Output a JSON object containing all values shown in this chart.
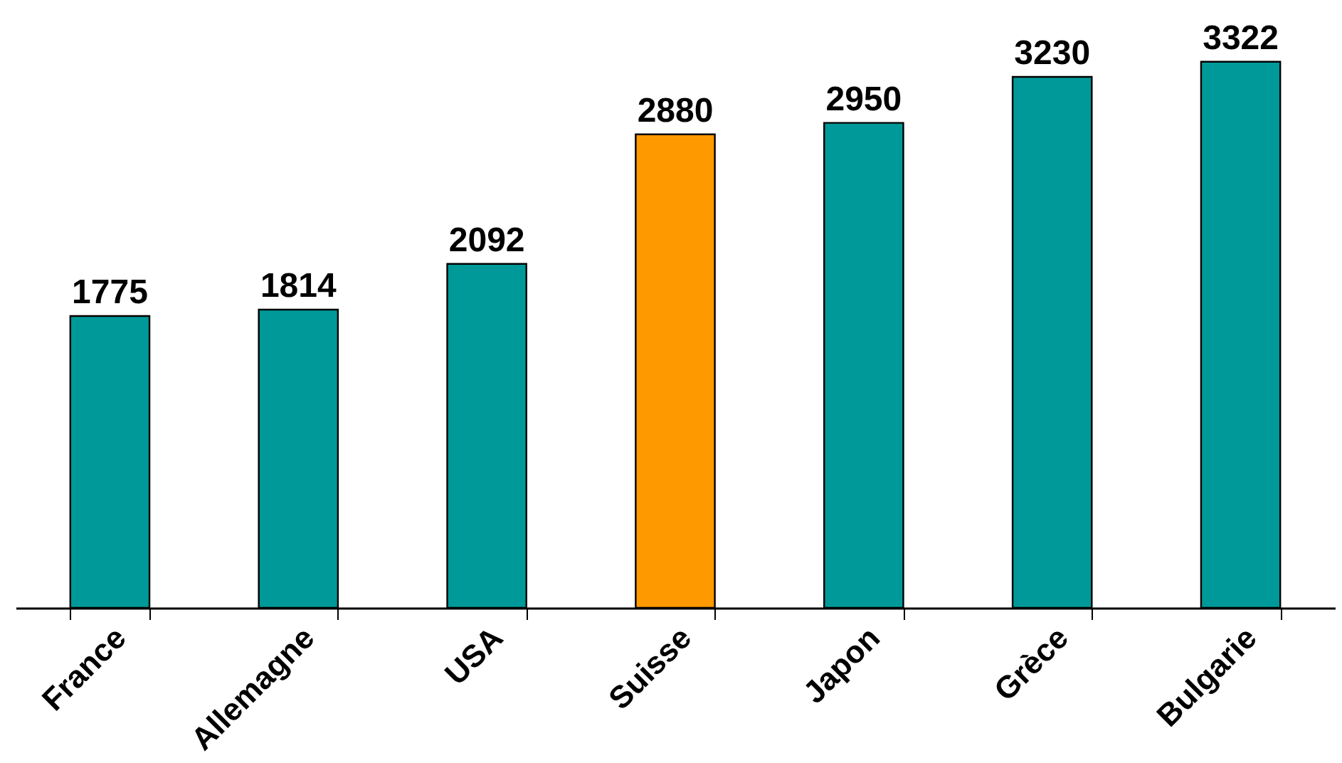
{
  "chart_data": {
    "type": "bar",
    "categories": [
      "France",
      "Allemagne",
      "USA",
      "Suisse",
      "Japon",
      "Grèce",
      "Bulgarie"
    ],
    "values": [
      1775,
      1814,
      2092,
      2880,
      2950,
      3230,
      3322
    ],
    "colors": [
      "#009999",
      "#009999",
      "#009999",
      "#ff9900",
      "#009999",
      "#009999",
      "#009999"
    ],
    "data_labels": true,
    "tick_labels": "x"
  }
}
